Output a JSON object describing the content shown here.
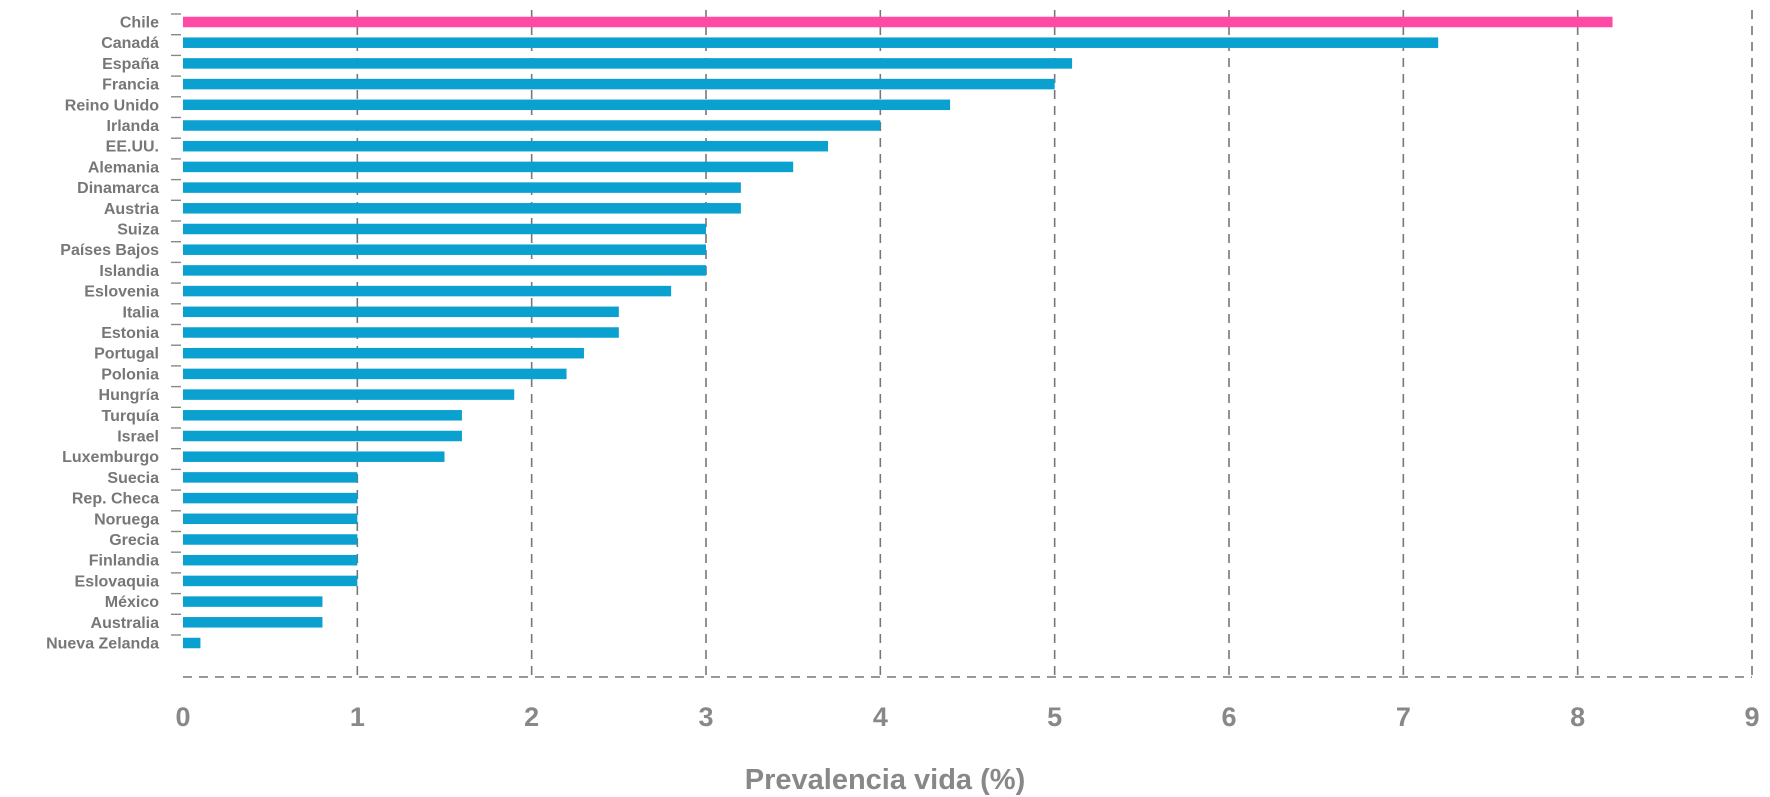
{
  "chart_data": {
    "type": "bar",
    "orientation": "horizontal",
    "title": "",
    "xlabel": "Prevalencia vida (%)",
    "ylabel": "",
    "xlim": [
      0,
      9
    ],
    "xticks": [
      "0",
      "1",
      "2",
      "3",
      "4",
      "5",
      "6",
      "7",
      "8",
      "9"
    ],
    "grid": "vertical dashed",
    "categories": [
      "Chile",
      "Canadá",
      "España",
      "Francia",
      "Reino Unido",
      "Irlanda",
      "EE.UU.",
      "Alemania",
      "Dinamarca",
      "Austria",
      "Suiza",
      "Países Bajos",
      "Islandia",
      "Eslovenia",
      "Italia",
      "Estonia",
      "Portugal",
      "Polonia",
      "Hungría",
      "Turquía",
      "Israel",
      "Luxemburgo",
      "Suecia",
      "Rep. Checa",
      "Noruega",
      "Grecia",
      "Finlandia",
      "Eslovaquia",
      "México",
      "Australia",
      "Nueva Zelanda"
    ],
    "values": [
      8.2,
      7.2,
      5.1,
      5.0,
      4.4,
      4.0,
      3.7,
      3.5,
      3.2,
      3.2,
      3.0,
      3.0,
      3.0,
      2.8,
      2.5,
      2.5,
      2.3,
      2.2,
      1.9,
      1.6,
      1.6,
      1.5,
      1.0,
      1.0,
      1.0,
      1.0,
      1.0,
      1.0,
      0.8,
      0.8,
      0.1
    ],
    "colors": {
      "highlight": "#ff4aa5",
      "default": "#0aa0cf",
      "grid": "#777777",
      "text": "#888888"
    },
    "highlighted_category": "Chile"
  }
}
